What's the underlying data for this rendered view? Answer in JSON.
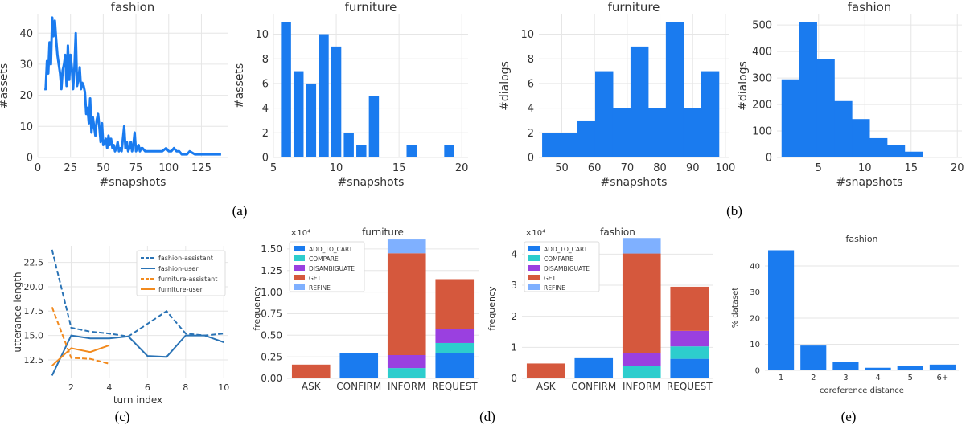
{
  "captions": [
    "(a)",
    "(b)",
    "(c)",
    "(d)",
    "(e)"
  ],
  "chart_data": [
    {
      "id": "a1",
      "type": "line",
      "title": "fashion",
      "xlabel": "#snapshots",
      "ylabel": "#assets",
      "xlim": [
        0,
        145
      ],
      "ylim": [
        0,
        46
      ],
      "xticks": [
        0,
        25,
        50,
        75,
        100,
        125
      ],
      "yticks": [
        0,
        10,
        20,
        30,
        40
      ],
      "series": [
        {
          "color": "#1a7bef",
          "x": [
            5,
            6,
            7,
            8,
            9,
            10,
            11,
            12,
            13,
            14,
            15,
            16,
            17,
            18,
            19,
            20,
            21,
            22,
            23,
            24,
            25,
            26,
            27,
            28,
            29,
            30,
            31,
            32,
            33,
            34,
            35,
            36,
            37,
            38,
            39,
            40,
            41,
            42,
            43,
            44,
            45,
            46,
            47,
            48,
            49,
            50,
            51,
            52,
            53,
            54,
            55,
            56,
            57,
            58,
            59,
            60,
            61,
            62,
            63,
            64,
            65,
            66,
            67,
            68,
            69,
            70,
            71,
            72,
            73,
            74,
            75,
            76,
            77,
            78,
            79,
            80,
            82,
            85,
            88,
            90,
            92,
            95,
            98,
            100,
            102,
            104,
            106,
            108,
            110,
            112,
            114,
            116,
            120,
            125,
            130,
            135,
            140
          ],
          "y": [
            22,
            22,
            31,
            27,
            37,
            30,
            45,
            39,
            44,
            38,
            33,
            30,
            27,
            22,
            28,
            30,
            33,
            23,
            36,
            25,
            33,
            29,
            22,
            29,
            40,
            23,
            25,
            29,
            22,
            24,
            23,
            21,
            14,
            16,
            11,
            19,
            8,
            13,
            10,
            7,
            12,
            14,
            10,
            5,
            11,
            4,
            5,
            6,
            3,
            7,
            4,
            6,
            3,
            4,
            2,
            3,
            5,
            2,
            3,
            2,
            6,
            10,
            3,
            5,
            2,
            3,
            5,
            2,
            4,
            8,
            2,
            3,
            4,
            2,
            3,
            3,
            2,
            2,
            2,
            2,
            2,
            2,
            3,
            2,
            2,
            3,
            2,
            2,
            1,
            1,
            1,
            2,
            1,
            1,
            1,
            1,
            1
          ]
        }
      ]
    },
    {
      "id": "a2",
      "type": "bar",
      "title": "furniture",
      "xlabel": "#snapshots",
      "ylabel": "#assets",
      "xlim": [
        5,
        20.5
      ],
      "ylim": [
        0,
        11.6
      ],
      "xticks": [
        5,
        10,
        15,
        20
      ],
      "yticks": [
        0,
        2,
        4,
        6,
        8,
        10
      ],
      "x": [
        6,
        7,
        8,
        9,
        10,
        11,
        12,
        13,
        16,
        19
      ],
      "values": [
        11,
        7,
        6,
        10,
        9,
        2,
        1,
        5,
        1,
        1
      ],
      "color": "#1a7bef"
    },
    {
      "id": "b1",
      "type": "bar",
      "title": "furniture",
      "xlabel": "#snapshots",
      "ylabel": "#dialogs",
      "xlim": [
        43,
        101
      ],
      "ylim": [
        0,
        11.6
      ],
      "xticks": [
        50,
        60,
        70,
        80,
        90,
        100
      ],
      "yticks": [
        0,
        2,
        4,
        6,
        8,
        10
      ],
      "bin_edges": [
        44,
        49.4,
        54.8,
        60.2,
        65.6,
        71,
        76.4,
        81.8,
        87.2,
        92.6,
        98
      ],
      "values": [
        2,
        2,
        3,
        7,
        4,
        9,
        4,
        11,
        4,
        7
      ],
      "color": "#1a7bef"
    },
    {
      "id": "b2",
      "type": "bar",
      "title": "fashion",
      "xlabel": "#snapshots",
      "ylabel": "#dialogs",
      "xlim": [
        0.5,
        20.5
      ],
      "ylim": [
        0,
        540
      ],
      "xticks": [
        5,
        10,
        15,
        20
      ],
      "yticks": [
        0,
        100,
        200,
        300,
        400,
        500
      ],
      "bin_edges": [
        1,
        2.9,
        4.8,
        6.7,
        8.6,
        10.5,
        12.4,
        14.3,
        16.2,
        18.1,
        20
      ],
      "values": [
        295,
        512,
        371,
        213,
        145,
        73,
        48,
        22,
        3,
        2
      ],
      "color": "#1a7bef"
    },
    {
      "id": "c",
      "type": "line",
      "xlabel": "turn index",
      "ylabel": "utterance length",
      "xlim": [
        0.8,
        10.2
      ],
      "ylim": [
        10.6,
        24.2
      ],
      "xticks": [
        2,
        4,
        6,
        8,
        10
      ],
      "yticks": [
        12.5,
        15.0,
        17.5,
        20.0,
        22.5
      ],
      "legend": "top-right",
      "series": [
        {
          "name": "fashion-assistant",
          "color": "#2a73b5",
          "dash": true,
          "x": [
            1,
            2,
            3,
            4,
            5,
            6,
            7,
            8,
            9,
            10
          ],
          "y": [
            23.8,
            15.8,
            15.4,
            15.2,
            14.9,
            16.2,
            17.5,
            15.2,
            15.0,
            15.2
          ]
        },
        {
          "name": "fashion-user",
          "color": "#2a73b5",
          "dash": false,
          "x": [
            1,
            2,
            3,
            4,
            5,
            6,
            7,
            8,
            9,
            10
          ],
          "y": [
            10.9,
            15.0,
            14.7,
            14.7,
            14.9,
            12.9,
            12.8,
            15.0,
            15.0,
            14.3
          ]
        },
        {
          "name": "furniture-assistant",
          "color": "#f28a1e",
          "dash": true,
          "x": [
            1,
            2,
            3,
            4
          ],
          "y": [
            17.9,
            12.7,
            12.6,
            12.1
          ]
        },
        {
          "name": "furniture-user",
          "color": "#f28a1e",
          "dash": false,
          "x": [
            1,
            2,
            3,
            4
          ],
          "y": [
            11.9,
            13.7,
            13.3,
            14.0
          ]
        }
      ]
    },
    {
      "id": "d1",
      "type": "bar",
      "stacked": true,
      "title": "furniture",
      "ylabel": "frequency",
      "multiplier": "×10⁴",
      "ylim": [
        0,
        1.62
      ],
      "yticks": [
        "0.00",
        "0.25",
        "0.50",
        "0.75",
        "1.00",
        "1.25",
        "1.50"
      ],
      "tick_values": [
        0,
        0.25,
        0.5,
        0.75,
        1.0,
        1.25,
        1.5
      ],
      "legend": "top-left",
      "categories": [
        "ASK",
        "CONFIRM",
        "INFORM",
        "REQUEST"
      ],
      "series": [
        {
          "name": "ADD_TO_CART",
          "color": "#1a7bef",
          "values": [
            0,
            0.29,
            0,
            0.29
          ]
        },
        {
          "name": "COMPARE",
          "color": "#2dcdcd",
          "values": [
            0,
            0,
            0.12,
            0.12
          ]
        },
        {
          "name": "DISAMBIGUATE",
          "color": "#9a40e0",
          "values": [
            0,
            0,
            0.15,
            0.16
          ]
        },
        {
          "name": "GET",
          "color": "#d5583d",
          "values": [
            0.16,
            0,
            1.18,
            0.58
          ]
        },
        {
          "name": "REFINE",
          "color": "#7fb0ff",
          "values": [
            0,
            0,
            0.16,
            0
          ]
        }
      ]
    },
    {
      "id": "d2",
      "type": "bar",
      "stacked": true,
      "title": "fashion",
      "ylabel": "frequency",
      "multiplier": "×10⁴",
      "ylim": [
        0,
        4.5
      ],
      "yticks": [
        "0",
        "1",
        "2",
        "3",
        "4"
      ],
      "tick_values": [
        0,
        1,
        2,
        3,
        4
      ],
      "legend": "top-left",
      "categories": [
        "ASK",
        "CONFIRM",
        "INFORM",
        "REQUEST"
      ],
      "series": [
        {
          "name": "ADD_TO_CART",
          "color": "#1a7bef",
          "values": [
            0,
            0.65,
            0,
            0.63
          ]
        },
        {
          "name": "COMPARE",
          "color": "#2dcdcd",
          "values": [
            0,
            0,
            0.4,
            0.4
          ]
        },
        {
          "name": "DISAMBIGUATE",
          "color": "#9a40e0",
          "values": [
            0,
            0,
            0.42,
            0.5
          ]
        },
        {
          "name": "GET",
          "color": "#d5583d",
          "values": [
            0.48,
            0,
            3.2,
            1.42
          ]
        },
        {
          "name": "REFINE",
          "color": "#7fb0ff",
          "values": [
            0,
            0,
            0.5,
            0
          ]
        }
      ]
    },
    {
      "id": "e",
      "type": "bar",
      "title": "fashion",
      "xlabel": "coreference distance",
      "ylabel": "% dataset",
      "ylim": [
        0,
        48
      ],
      "yticks": [
        0,
        10,
        20,
        30,
        40
      ],
      "categories": [
        "1",
        "2",
        "3",
        "4",
        "5",
        "6+"
      ],
      "values": [
        46,
        9.5,
        3.2,
        1.0,
        1.8,
        2.2
      ],
      "color": "#1a7bef"
    }
  ]
}
